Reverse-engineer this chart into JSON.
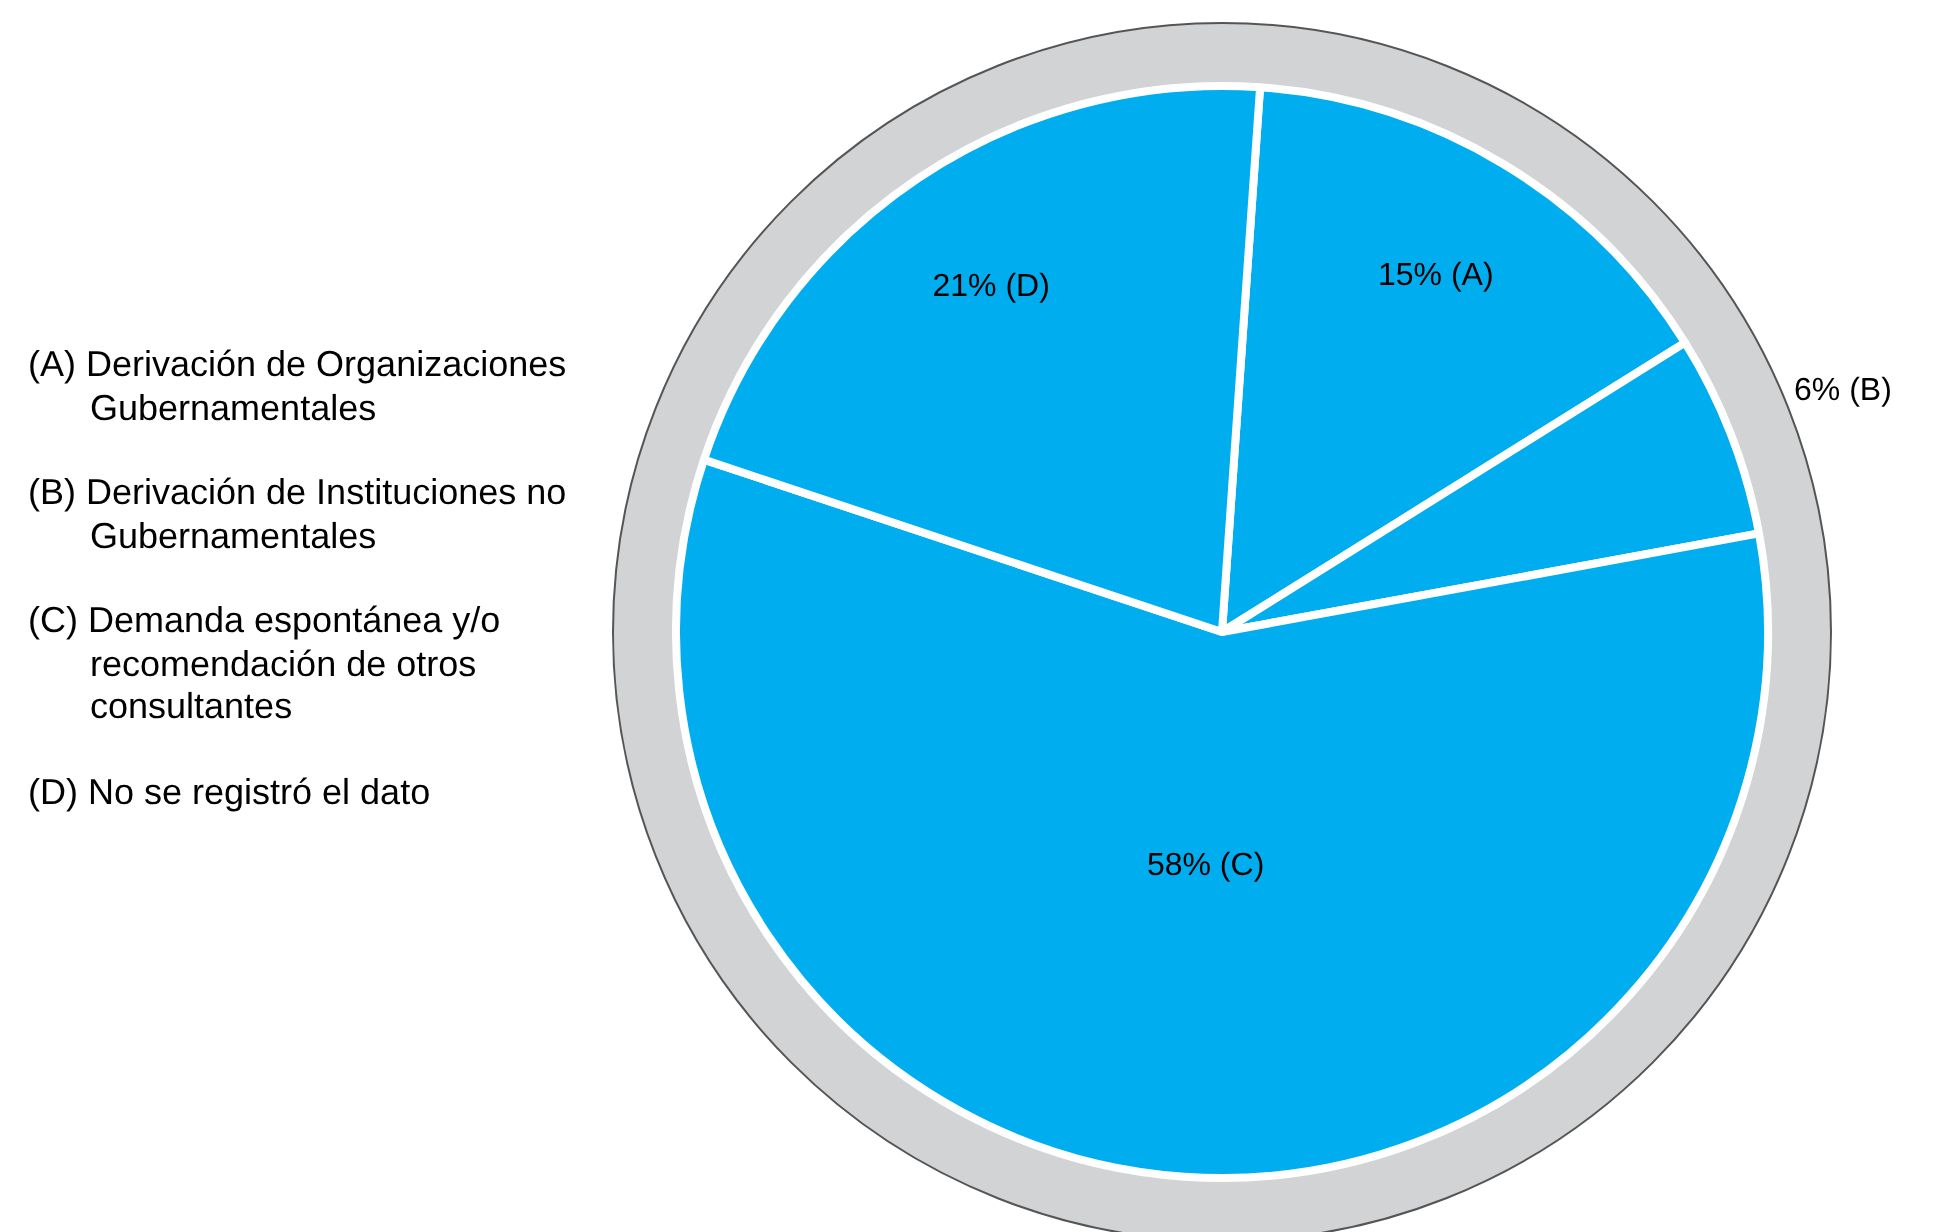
{
  "chart_data": {
    "type": "pie",
    "categories": [
      "(A)",
      "(B)",
      "(C)",
      "(D)"
    ],
    "values": [
      15,
      6,
      58,
      21
    ],
    "value_labels": [
      "15%",
      "6%",
      "58%",
      "21%"
    ],
    "colors": [
      "#00adef",
      "#00adef",
      "#00adef",
      "#00adef"
    ],
    "annotations": [
      "(A) Derivación de Organizaciones Gubernamentales",
      "(B) Derivación de Instituciones no Gubernamentales",
      "(C) Demanda espontánea y/o recomendación de otros consultantes",
      "(D) No se registró el dato"
    ]
  }
}
